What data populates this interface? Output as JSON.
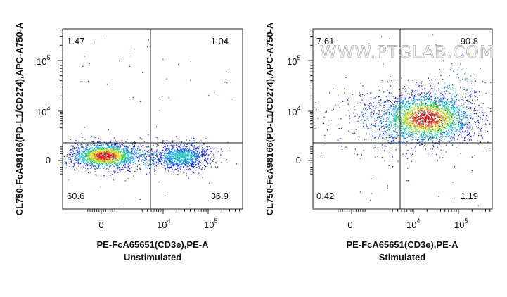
{
  "watermark": "WWW.PTGLAB.COM",
  "chart_data": [
    {
      "type": "scatter",
      "title": "Unstimulated",
      "xlabel": "PE-FcA65651(CD3e),PE-A",
      "ylabel": "CL750-FcA98166(PD-L1/CD274),APC-A750-A",
      "x_ticks": [
        {
          "base": "0",
          "exp": ""
        },
        {
          "base": "10",
          "exp": "4"
        },
        {
          "base": "10",
          "exp": "5"
        }
      ],
      "y_ticks": [
        {
          "base": "0",
          "exp": ""
        },
        {
          "base": "10",
          "exp": "4"
        },
        {
          "base": "10",
          "exp": "5"
        }
      ],
      "quadrants": {
        "top_left": "1.47",
        "top_right": "1.04",
        "bottom_left": "60.6",
        "bottom_right": "36.9"
      },
      "populations": [
        {
          "cd3e": -200,
          "pdl1": 0,
          "share": 0.61
        },
        {
          "cd3e": 40000,
          "pdl1": 0,
          "share": 0.37
        }
      ],
      "color_scale": [
        "#1f2bd6",
        "#1f8fe6",
        "#26c9c9",
        "#3fcf5a",
        "#b5e02c",
        "#f2d022",
        "#f06a1c",
        "#e01a1a"
      ]
    },
    {
      "type": "scatter",
      "title": "Stimulated",
      "xlabel": "PE-FcA65651(CD3e),PE-A",
      "ylabel": "CL750-FcA98166(PD-L1/CD274),APC-A750-A",
      "x_ticks": [
        {
          "base": "0",
          "exp": ""
        },
        {
          "base": "10",
          "exp": "4"
        },
        {
          "base": "10",
          "exp": "5"
        }
      ],
      "y_ticks": [
        {
          "base": "0",
          "exp": ""
        },
        {
          "base": "10",
          "exp": "4"
        },
        {
          "base": "10",
          "exp": "5"
        }
      ],
      "quadrants": {
        "top_left": "7.61",
        "top_right": "90.8",
        "bottom_left": "0.42",
        "bottom_right": "1.19"
      },
      "populations": [
        {
          "cd3e": 30000,
          "pdl1": 8000,
          "share": 0.99
        }
      ],
      "color_scale": [
        "#1f2bd6",
        "#1f8fe6",
        "#26c9c9",
        "#3fcf5a",
        "#b5e02c",
        "#f2d022",
        "#f06a1c",
        "#e01a1a"
      ]
    }
  ]
}
